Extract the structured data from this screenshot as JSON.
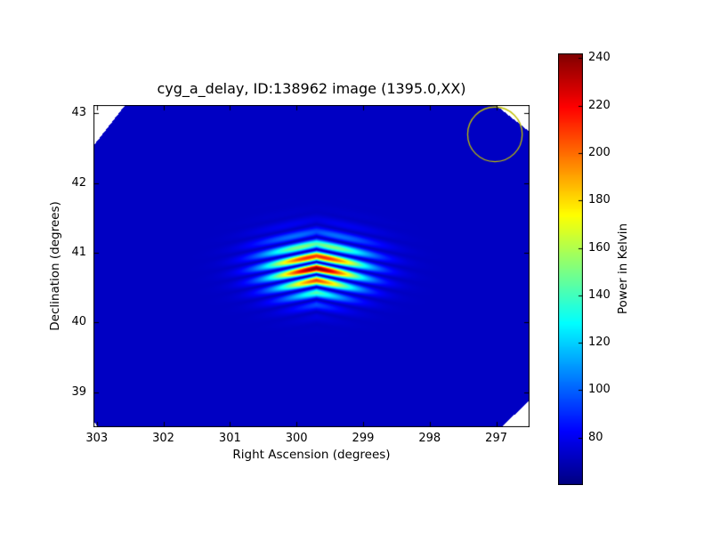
{
  "chart_data": {
    "type": "heatmap",
    "title": "cyg_a_delay, ID:138962 image (1395.0,XX)",
    "xlabel": "Right Ascension (degrees)",
    "ylabel": "Declination (degrees)",
    "x_axis": {
      "ticks": [
        303,
        302,
        301,
        300,
        299,
        298,
        297
      ],
      "range": [
        303.05,
        296.5
      ],
      "reversed": true
    },
    "y_axis": {
      "ticks": [
        39,
        40,
        41,
        42,
        43
      ],
      "range": [
        38.5,
        43.12
      ]
    },
    "colorbar": {
      "label": "Power in Kelvin",
      "ticks": [
        80,
        100,
        120,
        140,
        160,
        180,
        200,
        220,
        240
      ],
      "range": [
        60,
        242
      ],
      "colormap": "jet"
    },
    "background_value_kelvin": 72,
    "source": {
      "name": "Cygnus A",
      "ra_deg": 299.7,
      "dec_deg": 40.78,
      "peak_kelvin": 242,
      "sigma_ra_deg": 0.5,
      "sigma_dec_deg": 0.27,
      "fringe_period_dec_deg": 0.18,
      "chevron_rate_rad_per_deg": 7
    },
    "annotation_circle": {
      "ra_deg": 297.02,
      "dec_deg": 42.7,
      "radius_deg": 0.41,
      "color": "#bfbf00"
    },
    "footprint_polygon_frac": [
      [
        0,
        0.127
      ],
      [
        0.073,
        0
      ],
      [
        0.922,
        0
      ],
      [
        1,
        0.083
      ],
      [
        1,
        0.917
      ],
      [
        0.935,
        1
      ],
      [
        0.012,
        1
      ],
      [
        0,
        0.983
      ]
    ]
  }
}
